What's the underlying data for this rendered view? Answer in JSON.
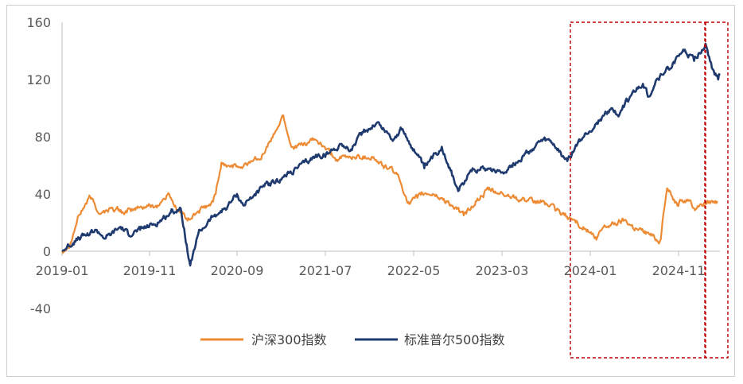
{
  "chart_data": {
    "type": "line",
    "title": "",
    "xlabel": "",
    "ylabel": "",
    "ylim": [
      -40,
      160
    ],
    "y_ticks": [
      "160",
      "120",
      "80",
      "40",
      "0",
      "-40"
    ],
    "x_tick_labels": [
      "2019-01",
      "2019-11",
      "2020-09",
      "2021-07",
      "2022-05",
      "2023-03",
      "2024-01",
      "2024-11"
    ],
    "grid": false,
    "legend_position": "bottom",
    "series": [
      {
        "name": "沪深300指数",
        "color": "#ED8B35",
        "points": [
          [
            "2019-01-02",
            0
          ],
          [
            "2019-02-01",
            6
          ],
          [
            "2019-03-01",
            25
          ],
          [
            "2019-04-10",
            38
          ],
          [
            "2019-05-15",
            26
          ],
          [
            "2019-06-20",
            30
          ],
          [
            "2019-08-15",
            27
          ],
          [
            "2019-10-01",
            31
          ],
          [
            "2019-12-01",
            32
          ],
          [
            "2020-01-10",
            40
          ],
          [
            "2020-02-03",
            30
          ],
          [
            "2020-03-20",
            22
          ],
          [
            "2020-04-20",
            28
          ],
          [
            "2020-06-01",
            32
          ],
          [
            "2020-06-20",
            40
          ],
          [
            "2020-07-10",
            62
          ],
          [
            "2020-08-15",
            60
          ],
          [
            "2020-09-20",
            58
          ],
          [
            "2020-10-20",
            63
          ],
          [
            "2020-12-01",
            68
          ],
          [
            "2021-01-10",
            82
          ],
          [
            "2021-02-10",
            95
          ],
          [
            "2021-03-10",
            73
          ],
          [
            "2021-04-20",
            74
          ],
          [
            "2021-06-01",
            78
          ],
          [
            "2021-07-10",
            71
          ],
          [
            "2021-08-15",
            64
          ],
          [
            "2021-10-01",
            66
          ],
          [
            "2021-12-15",
            66
          ],
          [
            "2022-01-20",
            60
          ],
          [
            "2022-03-10",
            55
          ],
          [
            "2022-04-25",
            33
          ],
          [
            "2022-06-10",
            40
          ],
          [
            "2022-07-15",
            40
          ],
          [
            "2022-09-01",
            35
          ],
          [
            "2022-10-31",
            25
          ],
          [
            "2022-12-15",
            35
          ],
          [
            "2023-01-25",
            43
          ],
          [
            "2023-03-01",
            40
          ],
          [
            "2023-05-01",
            38
          ],
          [
            "2023-07-01",
            34
          ],
          [
            "2023-08-01",
            35
          ],
          [
            "2023-10-01",
            27
          ],
          [
            "2023-12-01",
            20
          ],
          [
            "2024-01-20",
            12
          ],
          [
            "2024-02-05",
            8
          ],
          [
            "2024-03-01",
            17
          ],
          [
            "2024-05-15",
            22
          ],
          [
            "2024-06-20",
            16
          ],
          [
            "2024-08-01",
            13
          ],
          [
            "2024-09-13",
            7
          ],
          [
            "2024-10-08",
            44
          ],
          [
            "2024-11-10",
            34
          ],
          [
            "2024-12-20",
            36
          ],
          [
            "2025-01-10",
            30
          ],
          [
            "2025-02-01",
            33
          ],
          [
            "2025-03-10",
            35
          ],
          [
            "2025-04-01",
            35
          ]
        ]
      },
      {
        "name": "标准普尔500指数",
        "color": "#1F3A6E",
        "points": [
          [
            "2019-01-02",
            0
          ],
          [
            "2019-02-15",
            7
          ],
          [
            "2019-04-30",
            15
          ],
          [
            "2019-06-03",
            9
          ],
          [
            "2019-07-25",
            17
          ],
          [
            "2019-08-20",
            12
          ],
          [
            "2019-10-01",
            15
          ],
          [
            "2019-12-01",
            20
          ],
          [
            "2020-01-15",
            27
          ],
          [
            "2020-02-19",
            30
          ],
          [
            "2020-03-23",
            -10
          ],
          [
            "2020-04-20",
            12
          ],
          [
            "2020-06-08",
            24
          ],
          [
            "2020-07-31",
            31
          ],
          [
            "2020-09-02",
            40
          ],
          [
            "2020-09-24",
            32
          ],
          [
            "2020-11-30",
            45
          ],
          [
            "2021-01-31",
            50
          ],
          [
            "2021-03-31",
            58
          ],
          [
            "2021-06-01",
            66
          ],
          [
            "2021-07-15",
            68
          ],
          [
            "2021-09-01",
            75
          ],
          [
            "2021-10-01",
            70
          ],
          [
            "2021-11-15",
            83
          ],
          [
            "2022-01-03",
            90
          ],
          [
            "2022-03-01",
            78
          ],
          [
            "2022-03-29",
            85
          ],
          [
            "2022-05-20",
            68
          ],
          [
            "2022-06-16",
            58
          ],
          [
            "2022-08-16",
            73
          ],
          [
            "2022-10-12",
            42
          ],
          [
            "2022-12-01",
            58
          ],
          [
            "2023-02-01",
            58
          ],
          [
            "2023-03-13",
            55
          ],
          [
            "2023-05-01",
            62
          ],
          [
            "2023-07-31",
            77
          ],
          [
            "2023-09-01",
            76
          ],
          [
            "2023-10-27",
            63
          ],
          [
            "2023-12-01",
            75
          ],
          [
            "2024-01-02",
            82
          ],
          [
            "2024-03-28",
            100
          ],
          [
            "2024-04-19",
            95
          ],
          [
            "2024-06-01",
            108
          ],
          [
            "2024-07-16",
            117
          ],
          [
            "2024-08-05",
            108
          ],
          [
            "2024-09-01",
            120
          ],
          [
            "2024-10-01",
            125
          ],
          [
            "2024-12-06",
            140
          ],
          [
            "2025-01-10",
            133
          ],
          [
            "2025-02-19",
            145
          ],
          [
            "2025-03-13",
            128
          ],
          [
            "2025-04-04",
            120
          ],
          [
            "2025-04-10",
            123
          ]
        ]
      }
    ],
    "highlight_ranges": [
      [
        "2023-12-01",
        "2024-12-21"
      ],
      [
        "2024-12-21",
        "2025-04-12"
      ]
    ]
  }
}
